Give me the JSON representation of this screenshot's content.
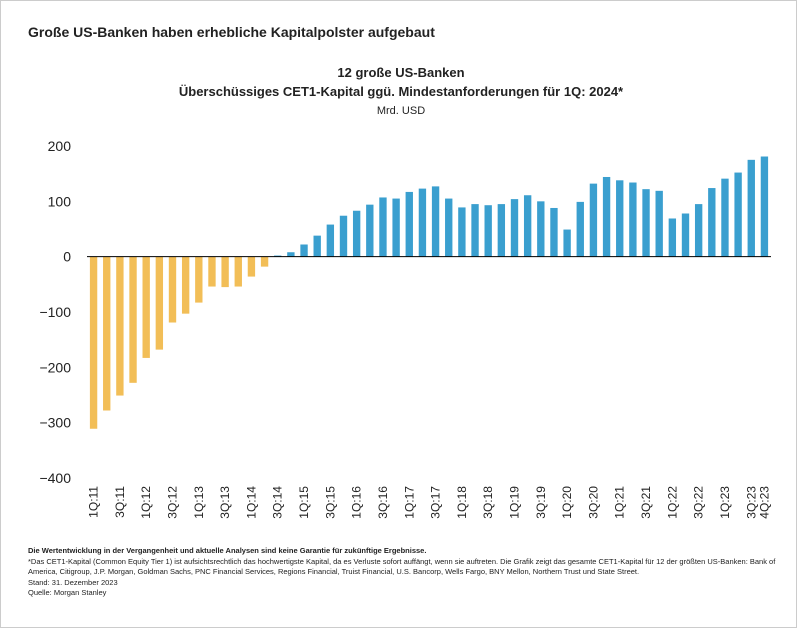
{
  "header": {
    "title": "Große US-Banken haben erhebliche Kapitalpolster aufgebaut"
  },
  "chart_data": {
    "type": "bar",
    "title": "12 große US-Banken",
    "subtitle": "Überschüssiges CET1-Kapital ggü. Mindestanforderungen für 1Q: 2024*",
    "y_label": "Mrd. USD",
    "categories": [
      "1Q:11",
      null,
      "3Q:11",
      null,
      "1Q:12",
      null,
      "3Q:12",
      null,
      "1Q:13",
      null,
      "3Q:13",
      null,
      "1Q:14",
      null,
      "3Q:14",
      null,
      "1Q:15",
      null,
      "3Q:15",
      null,
      "1Q:16",
      null,
      "3Q:16",
      null,
      "1Q:17",
      null,
      "3Q:17",
      null,
      "1Q:18",
      null,
      "3Q:18",
      null,
      "1Q:19",
      null,
      "3Q:19",
      null,
      "1Q:20",
      null,
      "3Q:20",
      null,
      "1Q:21",
      null,
      "3Q:21",
      null,
      "1Q:22",
      null,
      "3Q:22",
      null,
      "1Q:23",
      null,
      "3Q:23",
      "4Q:23"
    ],
    "values": [
      -311,
      -278,
      -251,
      -228,
      -183,
      -168,
      -119,
      -103,
      -83,
      -54,
      -55,
      -54,
      -36,
      -18,
      2,
      8,
      22,
      38,
      58,
      74,
      83,
      94,
      107,
      105,
      117,
      123,
      127,
      105,
      89,
      95,
      93,
      95,
      104,
      111,
      100,
      88,
      49,
      99,
      132,
      144,
      138,
      134,
      122,
      119,
      69,
      78,
      95,
      124,
      141,
      152,
      175,
      181
    ],
    "color": "#3a9fcf",
    "negative_color": "#f2be57",
    "ylim": [
      -400,
      200
    ],
    "yticks": [
      {
        "value": -400,
        "label": "−400"
      },
      {
        "value": -300,
        "label": "−300"
      },
      {
        "value": -200,
        "label": "−200"
      },
      {
        "value": -100,
        "label": "−100"
      },
      0,
      100,
      200
    ],
    "grid": false
  },
  "footer": {
    "disclaimer": "Die Wertentwicklung in der Vergangenheit und aktuelle Analysen sind keine Garantie für zukünftige Ergebnisse.",
    "note": "*Das CET1-Kapital (Common Equity Tier 1) ist aufsichtsrechtlich das hochwertigste Kapital, da es Verluste sofort auffängt, wenn sie auftreten. Die Grafik zeigt das gesamte CET1-Kapital für 12 der größten US-Banken: Bank of America, Citigroup, J.P. Morgan, Goldman Sachs, PNC Financial Services, Regions Financial, Truist Financial, U.S. Bancorp, Wells Fargo, BNY Mellon, Northern Trust und State Street.",
    "date": "Stand: 31. Dezember 2023",
    "source": "Quelle: Morgan Stanley"
  }
}
